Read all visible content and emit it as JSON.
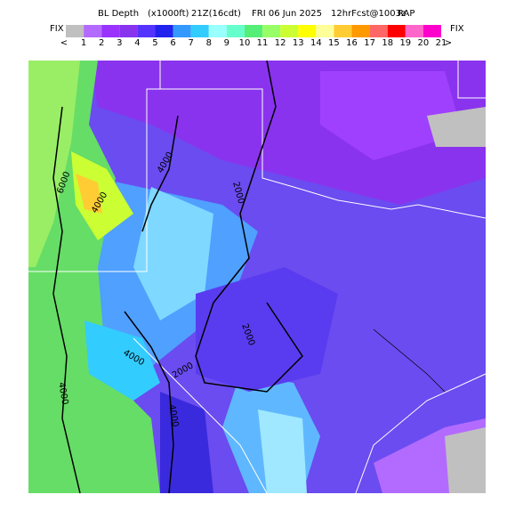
{
  "header": {
    "title": "BL Depth",
    "unit": "(x1000ft)",
    "valid": "21Z(16cdt)",
    "date": "FRI 06 Jun 2025",
    "forecast": "12hrFcst@1003z",
    "model": "RAP"
  },
  "legend": {
    "left": "FIX",
    "right": "FIX",
    "labels": [
      "<",
      "1",
      "2",
      "3",
      "4",
      "5",
      "6",
      "7",
      "8",
      "9",
      "10",
      "11",
      "12",
      "13",
      "14",
      "15",
      "16",
      "17",
      "18",
      "19",
      "20",
      "21",
      ">"
    ],
    "colors": [
      "#c0c0c0",
      "#b36bff",
      "#9a33ff",
      "#8833ee",
      "#5533ff",
      "#2222ee",
      "#3399ff",
      "#33ccff",
      "#99ffff",
      "#66ffcc",
      "#55ee77",
      "#99ff66",
      "#ccff33",
      "#ffff00",
      "#ffff99",
      "#ffcc33",
      "#ff9900",
      "#ff6666",
      "#ff0000",
      "#ff66cc",
      "#ff00cc"
    ]
  },
  "contours": {
    "labels": [
      "6000",
      "4000",
      "4000",
      "2000",
      "2000",
      "4000",
      "2000",
      "4000",
      "4000"
    ]
  }
}
